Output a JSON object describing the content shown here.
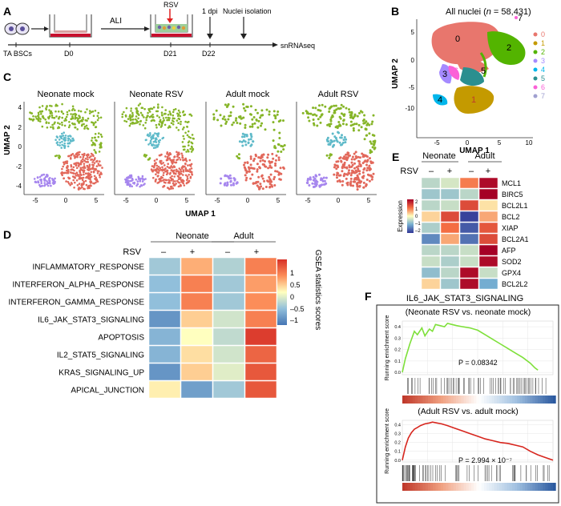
{
  "panels": {
    "A": {
      "letter": "A",
      "labels": {
        "cells": "TA BSCs",
        "d0": "D0",
        "d21": "D21",
        "d22": "D22",
        "ali": "ALI",
        "rsv": "RSV",
        "dpi": "1 dpi",
        "nuclei": "Nuclei isolation",
        "readout": "snRNAseq"
      },
      "colors": {
        "arrow": "#e02020",
        "cell": "#6a60a8",
        "medium": "#c8102e"
      }
    },
    "B": {
      "letter": "B",
      "title": "All nuclei (",
      "title_n": "n",
      "title_rest": " = 58,431)",
      "xlabel": "UMAP 1",
      "ylabel": "UMAP 2",
      "xticks": [
        "-5",
        "0",
        "5",
        "10"
      ],
      "yticks": [
        "5",
        "0",
        "-5",
        "-10"
      ],
      "cluster_labels": [
        "0",
        "1",
        "2",
        "3",
        "4",
        "5",
        "6",
        "7"
      ],
      "legend": [
        {
          "label": "0",
          "color": "#e8766d"
        },
        {
          "label": "1",
          "color": "#c49a00"
        },
        {
          "label": "2",
          "color": "#53b400"
        },
        {
          "label": "3",
          "color": "#a58aff"
        },
        {
          "label": "4",
          "color": "#00b6eb"
        },
        {
          "label": "5",
          "color": "#2a8f8f"
        },
        {
          "label": "6",
          "color": "#fb61d7"
        },
        {
          "label": "7",
          "color": "#a0a0d0"
        }
      ]
    },
    "C": {
      "letter": "C",
      "titles": [
        "Neonate mock",
        "Neonate RSV",
        "Adult mock",
        "Adult RSV"
      ],
      "xlabel": "UMAP 1",
      "ylabel": "UMAP 2",
      "xticks": [
        "-5",
        "0",
        "5"
      ],
      "yticks": [
        "4",
        "2",
        "0",
        "-2",
        "-4"
      ],
      "colors": {
        "green": "#86b528",
        "teal": "#5fbac9",
        "salmon": "#e2685b",
        "purple": "#a686ee"
      }
    },
    "D": {
      "letter": "D",
      "groups": [
        "Neonate",
        "Adult"
      ],
      "rsv_label": "RSV",
      "signs": [
        "–",
        "+",
        "–",
        "+"
      ],
      "legend_title": "GSEA statistics scores",
      "legend_ticks": [
        "1",
        "0.5",
        "0",
        "–0.5",
        "–1"
      ]
    },
    "E": {
      "letter": "E",
      "groups": [
        "Neonate",
        "Adult"
      ],
      "rsv_label": "RSV",
      "signs": [
        "–",
        "+",
        "–",
        "+"
      ],
      "legend_title": "Expression",
      "legend_ticks": [
        "2",
        "1",
        "0",
        "–1",
        "–2"
      ]
    },
    "F": {
      "letter": "F",
      "title": "IL6_JAK_STAT3_SIGNALING",
      "plots": [
        {
          "subtitle": "(Neonate RSV vs. neonate mock)",
          "ylabel": "Running enrichment score",
          "yticks": [
            "0.4",
            "0.3",
            "0.2",
            "0.1",
            "0.0"
          ],
          "pvalue": "P = 0.08342",
          "color": "#7ee03a"
        },
        {
          "subtitle": "(Adult RSV vs. adult mock)",
          "ylabel": "Running enrichment score",
          "yticks": [
            "0.4",
            "0.3",
            "0.2",
            "0.1",
            "0.0"
          ],
          "pvalue": "P = 2.994 × 10⁻⁷",
          "color": "#d7261e"
        }
      ]
    }
  },
  "chart_data": [
    {
      "type": "heatmap",
      "panel": "D",
      "title": "GSEA statistics scores",
      "columns": [
        "Neonate RSV –",
        "Neonate RSV +",
        "Adult RSV –",
        "Adult RSV +"
      ],
      "rows": [
        "INFLAMMATORY_RESPONSE",
        "INTERFERON_ALPHA_RESPONSE",
        "INTERFERON_GAMMA_RESPONSE",
        "IL6_JAK_STAT3_SIGNALING",
        "APOPTOSIS",
        "IL2_STAT5_SIGNALING",
        "KRAS_SIGNALING_UP",
        "APICAL_JUNCTION"
      ],
      "values": [
        [
          -0.5,
          0.6,
          -0.4,
          0.9
        ],
        [
          -0.6,
          0.9,
          -0.5,
          0.7
        ],
        [
          -0.6,
          0.9,
          -0.5,
          0.8
        ],
        [
          -1.0,
          0.4,
          -0.2,
          0.9
        ],
        [
          -0.7,
          0.1,
          -0.3,
          1.4
        ],
        [
          -0.7,
          0.3,
          -0.2,
          1.1
        ],
        [
          -1.0,
          0.4,
          -0.1,
          1.2
        ],
        [
          0.2,
          -0.9,
          -0.5,
          1.2
        ]
      ],
      "range": [
        -1.3,
        1.5
      ]
    },
    {
      "type": "heatmap",
      "panel": "E",
      "title": "Expression",
      "columns": [
        "Neonate –",
        "Neonate +",
        "Adult –",
        "Adult +"
      ],
      "rows": [
        "MCL1",
        "BIRC5",
        "BCL2L1",
        "BCL2",
        "XIAP",
        "BCL2A1",
        "AFP",
        "SOD2",
        "GPX4",
        "BCL2L2"
      ],
      "values": [
        [
          -0.5,
          -0.3,
          0.9,
          1.9
        ],
        [
          -0.7,
          -0.7,
          -0.5,
          2.0
        ],
        [
          -0.5,
          -0.4,
          1.3,
          0.2
        ],
        [
          0.3,
          1.3,
          -1.9,
          0.6
        ],
        [
          -0.6,
          1.0,
          -1.7,
          1.2
        ],
        [
          -1.3,
          0.6,
          -1.5,
          1.3
        ],
        [
          -0.5,
          -0.5,
          -0.4,
          2.0
        ],
        [
          -0.4,
          -0.6,
          -0.4,
          1.9
        ],
        [
          -0.8,
          -0.5,
          1.9,
          -0.4
        ],
        [
          0.3,
          -0.7,
          1.9,
          -1.0
        ]
      ],
      "range": [
        -2,
        2
      ]
    },
    {
      "type": "line",
      "panel": "F-top",
      "title": "Neonate RSV vs. neonate mock",
      "ylabel": "Running enrichment score",
      "ylim": [
        -0.02,
        0.45
      ],
      "x": [
        0,
        0.02,
        0.05,
        0.08,
        0.1,
        0.13,
        0.15,
        0.18,
        0.2,
        0.22,
        0.25,
        0.28,
        0.3,
        0.33,
        0.36,
        0.4,
        0.45,
        0.5,
        0.55,
        0.6,
        0.65,
        0.7,
        0.75,
        0.8,
        0.85,
        0.88,
        0.9
      ],
      "y": [
        0.0,
        0.12,
        0.25,
        0.36,
        0.33,
        0.39,
        0.32,
        0.38,
        0.36,
        0.42,
        0.41,
        0.4,
        0.43,
        0.42,
        0.41,
        0.4,
        0.39,
        0.37,
        0.33,
        0.29,
        0.25,
        0.21,
        0.17,
        0.13,
        0.08,
        0.04,
        0.02
      ]
    },
    {
      "type": "line",
      "panel": "F-bottom",
      "title": "Adult RSV vs. adult mock",
      "ylabel": "Running enrichment score",
      "ylim": [
        -0.02,
        0.45
      ],
      "x": [
        0,
        0.02,
        0.04,
        0.06,
        0.08,
        0.1,
        0.12,
        0.15,
        0.18,
        0.2,
        0.23,
        0.26,
        0.3,
        0.35,
        0.4,
        0.45,
        0.5,
        0.55,
        0.6,
        0.65,
        0.7,
        0.75,
        0.8,
        0.85,
        0.9,
        0.95,
        1.0
      ],
      "y": [
        0.0,
        0.15,
        0.25,
        0.31,
        0.35,
        0.37,
        0.39,
        0.41,
        0.42,
        0.43,
        0.42,
        0.41,
        0.39,
        0.36,
        0.33,
        0.3,
        0.27,
        0.24,
        0.22,
        0.2,
        0.19,
        0.17,
        0.15,
        0.1,
        0.06,
        0.03,
        0.0
      ]
    }
  ]
}
